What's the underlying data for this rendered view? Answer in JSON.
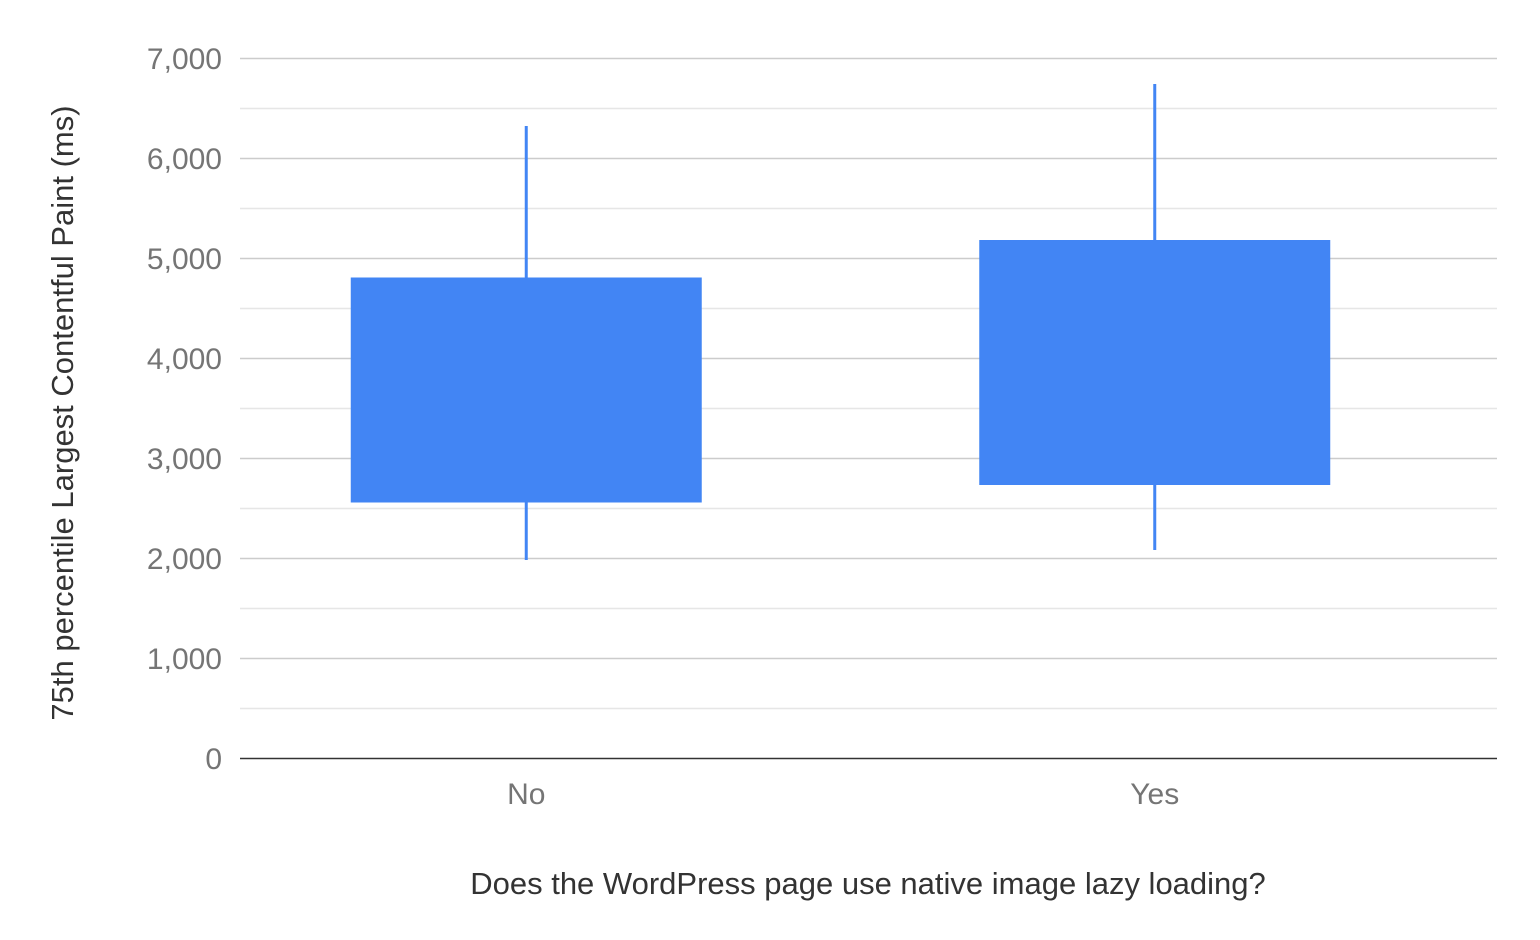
{
  "chart_data": {
    "type": "candlestick",
    "title": "",
    "xlabel": "Does the WordPress page use native image lazy loading?",
    "ylabel": "75th percentile Largest Contentful Paint (ms)",
    "categories": [
      "No",
      "Yes"
    ],
    "series": [
      {
        "low": [
          1980,
          2080
        ],
        "box_low": [
          2555,
          2730
        ],
        "box_high": [
          4805,
          5180
        ],
        "high": [
          6320,
          6740
        ]
      }
    ],
    "ylim": [
      0,
      7000
    ],
    "yticks": [
      0,
      1000,
      2000,
      3000,
      4000,
      5000,
      6000,
      7000
    ],
    "ytick_labels": [
      "0",
      "1,000",
      "2,000",
      "3,000",
      "4,000",
      "5,000",
      "6,000",
      "7,000"
    ],
    "minor_gridlines": true,
    "grid": true,
    "legend": "none",
    "color": "#4285F4"
  }
}
